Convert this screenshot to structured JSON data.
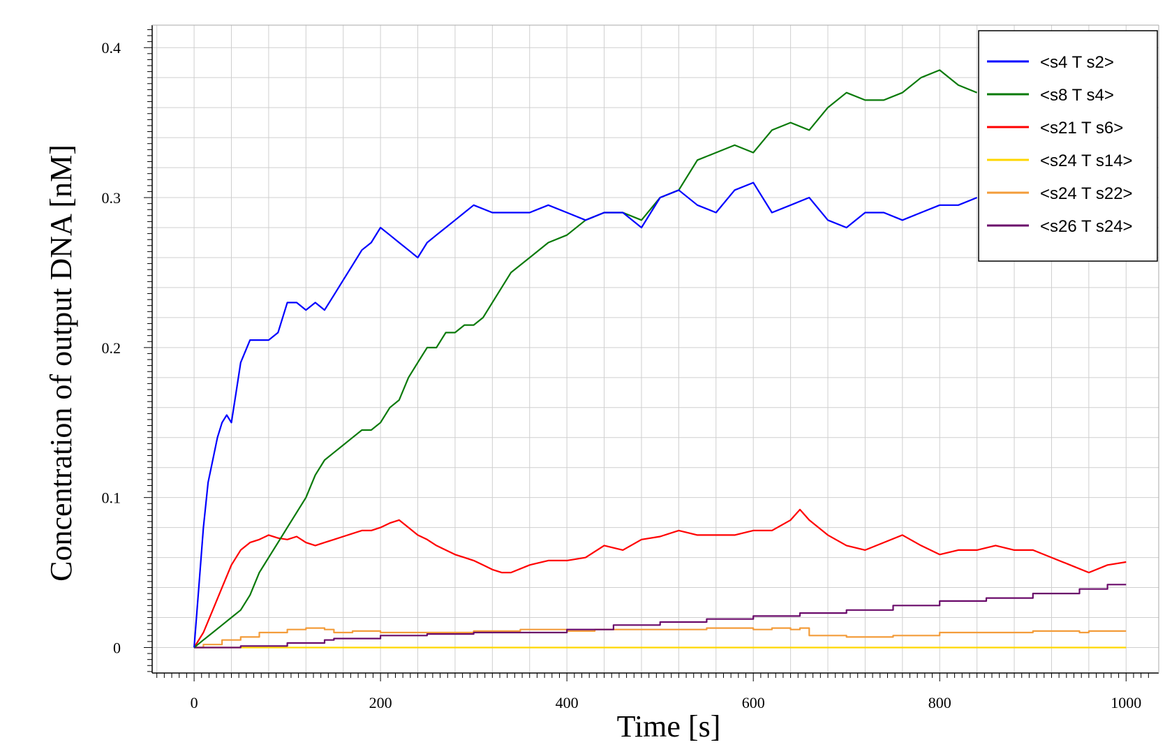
{
  "chart_data": {
    "type": "line",
    "title": "",
    "xlabel": "Time [s]",
    "ylabel": "Concentration of output DNA [nM]",
    "xlim": [
      -45,
      1035
    ],
    "ylim": [
      -0.017,
      0.415
    ],
    "x_ticks": [
      0,
      200,
      400,
      600,
      800,
      1000
    ],
    "x_tick_labels": [
      "0",
      "200",
      "400",
      "600",
      "800",
      "1000"
    ],
    "y_ticks": [
      0,
      0.1,
      0.2,
      0.3,
      0.4
    ],
    "y_tick_labels": [
      "0",
      "0.1",
      "0.2",
      "0.3",
      "0.4"
    ],
    "grid": true,
    "legend_position": "top-right",
    "series": [
      {
        "name": "<s4 T s2>",
        "color": "#0000ff",
        "x": [
          0,
          5,
          10,
          15,
          20,
          25,
          30,
          35,
          40,
          45,
          50,
          60,
          70,
          80,
          90,
          100,
          110,
          120,
          130,
          140,
          150,
          160,
          170,
          180,
          190,
          200,
          210,
          220,
          230,
          240,
          250,
          260,
          270,
          280,
          290,
          300,
          320,
          340,
          360,
          380,
          400,
          420,
          440,
          460,
          480,
          500,
          520,
          540,
          560,
          580,
          600,
          620,
          640,
          660,
          680,
          700,
          720,
          740,
          760,
          780,
          800,
          820,
          840
        ],
        "y": [
          0,
          0.04,
          0.08,
          0.11,
          0.125,
          0.14,
          0.15,
          0.155,
          0.15,
          0.17,
          0.19,
          0.205,
          0.205,
          0.205,
          0.21,
          0.23,
          0.23,
          0.225,
          0.23,
          0.225,
          0.235,
          0.245,
          0.255,
          0.265,
          0.27,
          0.28,
          0.275,
          0.27,
          0.265,
          0.26,
          0.27,
          0.275,
          0.28,
          0.285,
          0.29,
          0.295,
          0.29,
          0.29,
          0.29,
          0.295,
          0.29,
          0.285,
          0.29,
          0.29,
          0.28,
          0.3,
          0.305,
          0.295,
          0.29,
          0.305,
          0.31,
          0.29,
          0.295,
          0.3,
          0.285,
          0.28,
          0.29,
          0.29,
          0.285,
          0.29,
          0.295,
          0.295,
          0.3
        ]
      },
      {
        "name": "<s8 T s4>",
        "color": "#0a7a0a",
        "x": [
          0,
          10,
          20,
          30,
          40,
          50,
          60,
          70,
          80,
          90,
          100,
          110,
          120,
          130,
          140,
          150,
          160,
          170,
          180,
          190,
          200,
          210,
          220,
          230,
          240,
          250,
          260,
          270,
          280,
          290,
          300,
          310,
          320,
          340,
          360,
          380,
          400,
          420,
          440,
          460,
          480,
          500,
          520,
          540,
          560,
          580,
          600,
          620,
          640,
          660,
          680,
          700,
          720,
          740,
          760,
          780,
          800,
          820,
          840
        ],
        "y": [
          0,
          0.005,
          0.01,
          0.015,
          0.02,
          0.025,
          0.035,
          0.05,
          0.06,
          0.07,
          0.08,
          0.09,
          0.1,
          0.115,
          0.125,
          0.13,
          0.135,
          0.14,
          0.145,
          0.145,
          0.15,
          0.16,
          0.165,
          0.18,
          0.19,
          0.2,
          0.2,
          0.21,
          0.21,
          0.215,
          0.215,
          0.22,
          0.23,
          0.25,
          0.26,
          0.27,
          0.275,
          0.285,
          0.29,
          0.29,
          0.285,
          0.3,
          0.305,
          0.325,
          0.33,
          0.335,
          0.33,
          0.345,
          0.35,
          0.345,
          0.36,
          0.37,
          0.365,
          0.365,
          0.37,
          0.38,
          0.385,
          0.375,
          0.37
        ]
      },
      {
        "name": "<s21 T s6>",
        "color": "#ff0000",
        "x": [
          0,
          10,
          20,
          30,
          40,
          50,
          60,
          70,
          80,
          90,
          100,
          110,
          120,
          130,
          140,
          150,
          160,
          170,
          180,
          190,
          200,
          210,
          220,
          230,
          240,
          250,
          260,
          270,
          280,
          290,
          300,
          310,
          320,
          330,
          340,
          360,
          380,
          400,
          420,
          440,
          460,
          480,
          500,
          520,
          540,
          560,
          580,
          600,
          620,
          640,
          650,
          660,
          680,
          700,
          720,
          740,
          760,
          780,
          800,
          820,
          840,
          860,
          880,
          900,
          920,
          940,
          960,
          980,
          1000
        ],
        "y": [
          0,
          0.01,
          0.025,
          0.04,
          0.055,
          0.065,
          0.07,
          0.072,
          0.075,
          0.073,
          0.072,
          0.074,
          0.07,
          0.068,
          0.07,
          0.072,
          0.074,
          0.076,
          0.078,
          0.078,
          0.08,
          0.083,
          0.085,
          0.08,
          0.075,
          0.072,
          0.068,
          0.065,
          0.062,
          0.06,
          0.058,
          0.055,
          0.052,
          0.05,
          0.05,
          0.055,
          0.058,
          0.058,
          0.06,
          0.068,
          0.065,
          0.072,
          0.074,
          0.078,
          0.075,
          0.075,
          0.075,
          0.078,
          0.078,
          0.085,
          0.092,
          0.085,
          0.075,
          0.068,
          0.065,
          0.07,
          0.075,
          0.068,
          0.062,
          0.065,
          0.065,
          0.068,
          0.065,
          0.065,
          0.06,
          0.055,
          0.05,
          0.055,
          0.057
        ]
      },
      {
        "name": "<s24 T s14>",
        "color": "#ffd700",
        "x": [
          0,
          1000
        ],
        "y": [
          0,
          0
        ]
      },
      {
        "name": "<s24 T s22>",
        "color": "#f39c3a",
        "x": [
          0,
          10,
          30,
          50,
          70,
          90,
          100,
          120,
          140,
          150,
          170,
          200,
          250,
          300,
          350,
          400,
          430,
          450,
          500,
          550,
          600,
          620,
          640,
          650,
          660,
          700,
          750,
          800,
          850,
          900,
          950,
          960,
          1000
        ],
        "y": [
          0,
          0.002,
          0.005,
          0.007,
          0.01,
          0.01,
          0.012,
          0.013,
          0.012,
          0.01,
          0.011,
          0.01,
          0.01,
          0.011,
          0.012,
          0.011,
          0.012,
          0.012,
          0.012,
          0.013,
          0.012,
          0.013,
          0.012,
          0.013,
          0.008,
          0.007,
          0.008,
          0.01,
          0.01,
          0.011,
          0.01,
          0.011,
          0.011
        ]
      },
      {
        "name": "<s26 T s24>",
        "color": "#6a0a6a",
        "x": [
          0,
          50,
          100,
          140,
          150,
          200,
          250,
          300,
          350,
          400,
          450,
          500,
          550,
          600,
          650,
          700,
          750,
          800,
          850,
          900,
          950,
          980,
          1000
        ],
        "y": [
          0,
          0.001,
          0.003,
          0.005,
          0.006,
          0.008,
          0.009,
          0.01,
          0.01,
          0.012,
          0.015,
          0.017,
          0.019,
          0.021,
          0.023,
          0.025,
          0.028,
          0.031,
          0.033,
          0.036,
          0.039,
          0.042,
          0.042
        ]
      }
    ]
  }
}
